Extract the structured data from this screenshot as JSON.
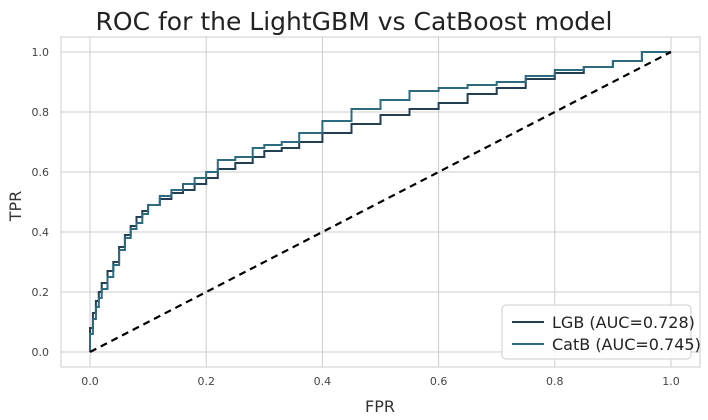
{
  "chart_data": {
    "type": "line",
    "title": "ROC for the LightGBM vs CatBoost model",
    "xlabel": "FPR",
    "ylabel": "TPR",
    "xlim": [
      -0.05,
      1.05
    ],
    "ylim": [
      -0.05,
      1.05
    ],
    "xticks": [
      "0.0",
      "0.2",
      "0.4",
      "0.6",
      "0.8",
      "1.0"
    ],
    "yticks": [
      "0.0",
      "0.2",
      "0.4",
      "0.6",
      "0.8",
      "1.0"
    ],
    "grid": true,
    "legend_position": "bottom-right",
    "series": [
      {
        "name": "LGB (AUC=0.728)",
        "color": "#253f52",
        "style": "step",
        "x": [
          0.0,
          0.005,
          0.01,
          0.015,
          0.02,
          0.03,
          0.04,
          0.05,
          0.06,
          0.07,
          0.08,
          0.09,
          0.1,
          0.12,
          0.14,
          0.16,
          0.18,
          0.2,
          0.22,
          0.25,
          0.28,
          0.3,
          0.33,
          0.36,
          0.4,
          0.45,
          0.5,
          0.55,
          0.6,
          0.65,
          0.7,
          0.75,
          0.8,
          0.85,
          0.9,
          0.95,
          1.0
        ],
        "y": [
          0.0,
          0.08,
          0.13,
          0.17,
          0.2,
          0.23,
          0.27,
          0.3,
          0.35,
          0.39,
          0.42,
          0.45,
          0.47,
          0.49,
          0.51,
          0.53,
          0.54,
          0.56,
          0.58,
          0.61,
          0.63,
          0.65,
          0.67,
          0.68,
          0.7,
          0.73,
          0.76,
          0.79,
          0.81,
          0.83,
          0.86,
          0.88,
          0.91,
          0.93,
          0.95,
          0.97,
          1.0
        ]
      },
      {
        "name": "CatB (AUC=0.745)",
        "color": "#2c6b80",
        "style": "step",
        "x": [
          0.0,
          0.005,
          0.01,
          0.015,
          0.02,
          0.03,
          0.04,
          0.05,
          0.06,
          0.07,
          0.08,
          0.09,
          0.1,
          0.12,
          0.14,
          0.16,
          0.18,
          0.2,
          0.22,
          0.25,
          0.28,
          0.3,
          0.33,
          0.36,
          0.4,
          0.45,
          0.5,
          0.55,
          0.6,
          0.65,
          0.7,
          0.75,
          0.8,
          0.85,
          0.9,
          0.95,
          1.0
        ],
        "y": [
          0.0,
          0.06,
          0.11,
          0.15,
          0.18,
          0.21,
          0.25,
          0.29,
          0.34,
          0.38,
          0.41,
          0.43,
          0.46,
          0.49,
          0.52,
          0.54,
          0.56,
          0.58,
          0.6,
          0.64,
          0.65,
          0.68,
          0.69,
          0.7,
          0.73,
          0.77,
          0.81,
          0.84,
          0.87,
          0.88,
          0.89,
          0.9,
          0.92,
          0.94,
          0.95,
          0.97,
          1.0
        ]
      }
    ],
    "reference_line": {
      "x": [
        0,
        1
      ],
      "y": [
        0,
        1
      ],
      "color": "#000000",
      "style": "dashed"
    }
  }
}
